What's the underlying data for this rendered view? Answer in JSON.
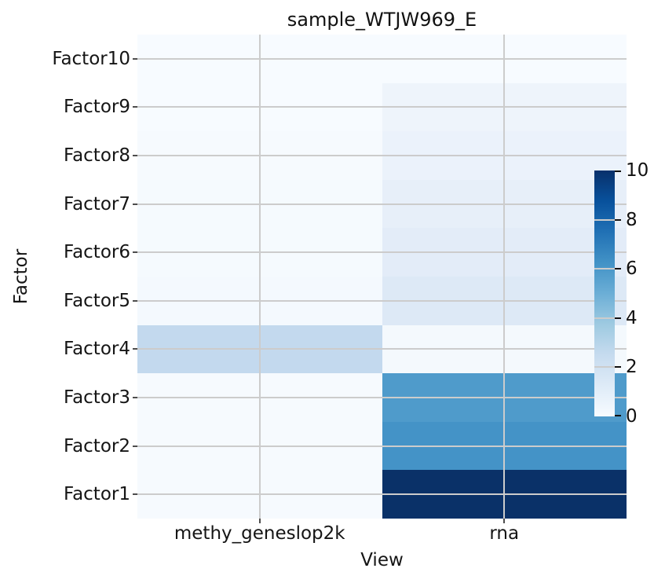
{
  "title": "sample_WTJW969_E",
  "axes": {
    "x_label": "View",
    "y_label": "Factor"
  },
  "chart_data": {
    "type": "heatmap",
    "title": "sample_WTJW969_E",
    "xlabel": "View",
    "ylabel": "Factor",
    "x_categories": [
      "methy_geneslop2k",
      "rna"
    ],
    "y_categories": [
      "Factor10",
      "Factor9",
      "Factor8",
      "Factor7",
      "Factor6",
      "Factor5",
      "Factor4",
      "Factor3",
      "Factor2",
      "Factor1"
    ],
    "values": [
      [
        0.05,
        0.1
      ],
      [
        0.05,
        0.45
      ],
      [
        0.1,
        0.55
      ],
      [
        0.1,
        0.7
      ],
      [
        0.1,
        0.85
      ],
      [
        0.15,
        1.1
      ],
      [
        2.2,
        0.15
      ],
      [
        0.1,
        5.9
      ],
      [
        0.1,
        6.3
      ],
      [
        0.1,
        10.0
      ]
    ],
    "cell_colors": [
      [
        "#f7fbff",
        "#f7fbff"
      ],
      [
        "#f7fbff",
        "#eef4fb"
      ],
      [
        "#f6fafe",
        "#ebf2fb"
      ],
      [
        "#f5fafe",
        "#e7eff9"
      ],
      [
        "#f5fafe",
        "#e3ecf8"
      ],
      [
        "#f4f9fe",
        "#dde9f6"
      ],
      [
        "#c3d9ee",
        "#f4f9fd"
      ],
      [
        "#f6fafe",
        "#4f9bcb"
      ],
      [
        "#f6fafe",
        "#4493c7"
      ],
      [
        "#f6fafe",
        "#0a3168"
      ]
    ],
    "grid": true,
    "legend_position": "colorbar-right-inset",
    "colorbar": {
      "min": 0,
      "max": 10,
      "ticks": [
        0,
        2,
        4,
        6,
        8,
        10
      ],
      "colormap": "Blues"
    }
  },
  "colors": {
    "background": "#ffffff",
    "grid": "#cccccc",
    "text": "#151515",
    "colorbar_gradient_top_to_bottom": [
      "#08306b",
      "#08519c",
      "#2171b5",
      "#4292c6",
      "#6baed6",
      "#9ecae1",
      "#c6dbef",
      "#deebf7",
      "#f7fbff"
    ]
  }
}
